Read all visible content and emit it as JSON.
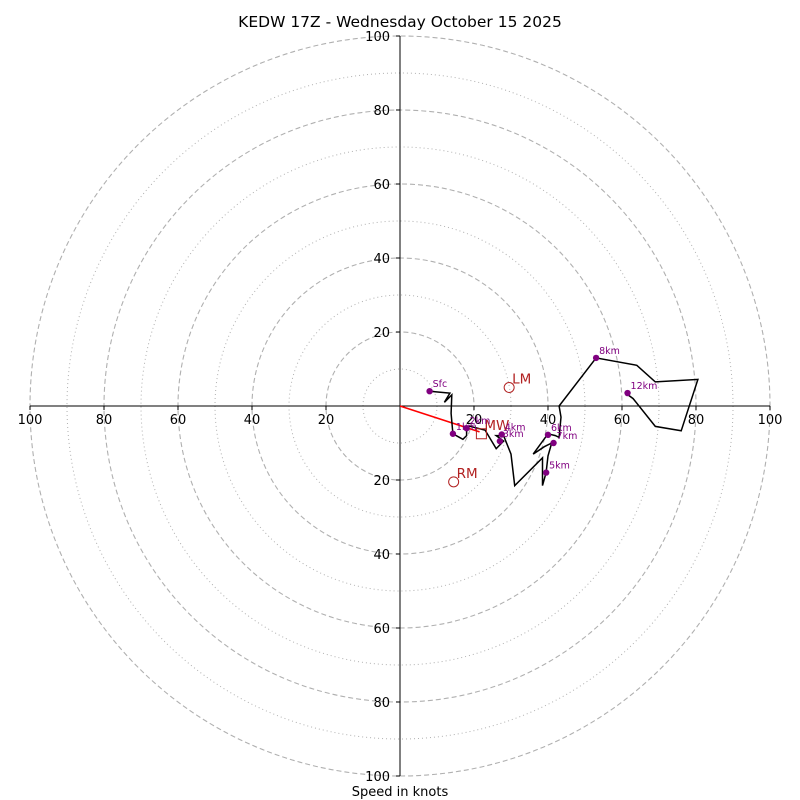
{
  "chart_data": {
    "type": "hodograph",
    "title": "KEDW 17Z - Wednesday October 15 2025",
    "xlabel": "Speed in knots",
    "xlim": [
      -100,
      100
    ],
    "ylim": [
      -100,
      100
    ],
    "rings_major": [
      20,
      40,
      60,
      80,
      100
    ],
    "rings_minor": [
      10,
      30,
      50,
      70,
      90
    ],
    "x_tick_labels": [
      "100",
      "80",
      "60",
      "40",
      "20",
      "20",
      "40",
      "60",
      "80",
      "100"
    ],
    "x_tick_values": [
      -100,
      -80,
      -60,
      -40,
      -20,
      20,
      40,
      60,
      80,
      100
    ],
    "y_tick_labels": [
      "100",
      "80",
      "60",
      "40",
      "20",
      "20",
      "40",
      "60",
      "80",
      "100"
    ],
    "y_tick_values": [
      100,
      80,
      60,
      40,
      20,
      -20,
      -40,
      -60,
      -80,
      -100
    ],
    "trace": [
      [
        8,
        4
      ],
      [
        13.5,
        3.5
      ],
      [
        12,
        1
      ],
      [
        14,
        3
      ],
      [
        13.8,
        -2
      ],
      [
        14.3,
        -7.5
      ],
      [
        17,
        -9
      ],
      [
        18,
        -8
      ],
      [
        18,
        -6
      ],
      [
        17.5,
        -5.5
      ],
      [
        19,
        -5.5
      ],
      [
        23,
        -6.5
      ],
      [
        26,
        -11.5
      ],
      [
        28,
        -9.5
      ],
      [
        26,
        -8
      ],
      [
        28,
        -8
      ],
      [
        30,
        -13
      ],
      [
        31,
        -21.5
      ],
      [
        38.5,
        -14
      ],
      [
        38.5,
        -21.5
      ],
      [
        39.5,
        -18
      ],
      [
        40,
        -13.5
      ],
      [
        41,
        -10
      ],
      [
        39,
        -11
      ],
      [
        36,
        -13
      ],
      [
        40,
        -7.5
      ],
      [
        42,
        -8
      ],
      [
        43,
        -8.5
      ],
      [
        43.5,
        -3
      ],
      [
        43,
        0
      ],
      [
        53,
        13
      ],
      [
        64,
        11
      ],
      [
        69,
        6.5
      ],
      [
        80.5,
        7.2
      ],
      [
        76,
        -6.7
      ],
      [
        69,
        -5.5
      ],
      [
        63,
        2
      ],
      [
        61,
        3.5
      ]
    ],
    "height_markers": [
      {
        "label": "Sfc",
        "x": 8,
        "y": 4
      },
      {
        "label": "1km",
        "x": 14.3,
        "y": -7.5
      },
      {
        "label": "2km",
        "x": 18,
        "y": -6
      },
      {
        "label": "3km",
        "x": 27,
        "y": -9.5
      },
      {
        "label": "4km",
        "x": 27.5,
        "y": -7.7
      },
      {
        "label": "5km",
        "x": 39.5,
        "y": -18
      },
      {
        "label": "6km",
        "x": 40,
        "y": -7.8
      },
      {
        "label": "7km",
        "x": 41.5,
        "y": -10
      },
      {
        "label": "8km",
        "x": 53,
        "y": 13
      },
      {
        "label": "12km",
        "x": 61.5,
        "y": 3.5
      }
    ],
    "storm_motion_points": [
      {
        "label": "LM",
        "x": 29.5,
        "y": 5,
        "marker": "circle"
      },
      {
        "label": "RM",
        "x": 14.5,
        "y": -20.5,
        "marker": "circle"
      },
      {
        "label": "MW",
        "x": 22,
        "y": -7.5,
        "marker": "square"
      }
    ],
    "shear_vector": {
      "from": [
        0,
        0
      ],
      "to": [
        21.5,
        -7
      ]
    }
  },
  "colors": {
    "trace": "#000000",
    "markers": "#800080",
    "storm_motion": "#b22222",
    "shear_vector": "#ff0000",
    "grid": "#b0b0b0",
    "axes": "#000000"
  }
}
